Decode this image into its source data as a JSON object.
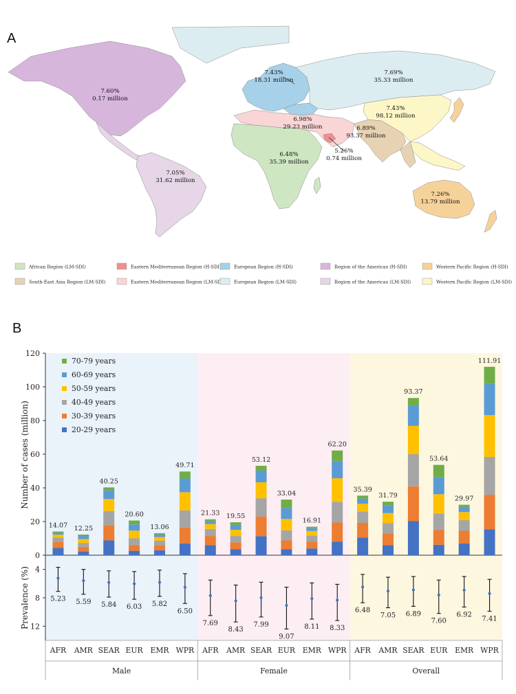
{
  "panel_a": {
    "letter": "A",
    "colors": {
      "afr_lm": "#cfe6c2",
      "emr_h": "#f08f8f",
      "eur_h": "#a6d1e8",
      "amr_h": "#d7b6dc",
      "wpr_h": "#f6d29b",
      "sear_lm": "#e7d3b4",
      "emr_lm": "#f9d5d6",
      "eur_lm": "#dcedf1",
      "amr_lm": "#e6d6e7",
      "wpr_lm": "#fdf6c6"
    },
    "labels": [
      {
        "id": "amr_h",
        "pct": "7.60%",
        "mil": "0.17 million"
      },
      {
        "id": "amr_lm",
        "pct": "7.05%",
        "mil": "31.62 million"
      },
      {
        "id": "afr",
        "pct": "6.48%",
        "mil": "35.39 million"
      },
      {
        "id": "emr_lm",
        "pct": "6.98%",
        "mil": "29.23 million"
      },
      {
        "id": "emr_h",
        "pct": "5.26%",
        "mil": "0.74 million"
      },
      {
        "id": "eur_h",
        "pct": "7.43%",
        "mil": "18.31 million"
      },
      {
        "id": "eur_lm",
        "pct": "7.69%",
        "mil": "35.33 million"
      },
      {
        "id": "wpr_lm",
        "pct": "7.43%",
        "mil": "98.12 million"
      },
      {
        "id": "sear",
        "pct": "6.89%",
        "mil": "93.37 million"
      },
      {
        "id": "wpr_h",
        "pct": "7.26%",
        "mil": "13.79 million"
      }
    ],
    "legend": [
      {
        "label": "African Region (LM-SDI)",
        "color": "#cfe6c2"
      },
      {
        "label": "Eastern Mediterranean Region (H-SDI)",
        "color": "#f08f8f"
      },
      {
        "label": "European Region (H-SDI)",
        "color": "#a6d1e8"
      },
      {
        "label": "Region of the Americas (H-SDI)",
        "color": "#d7b6dc"
      },
      {
        "label": "Western Pacific Region (H-SDI)",
        "color": "#f6d29b"
      },
      {
        "label": "South-East Asia Region (LM-SDI)",
        "color": "#e7d3b4"
      },
      {
        "label": "Eastern Mediterranean Region (LM-SDI)",
        "color": "#f9d5d6"
      },
      {
        "label": "European Region (LM-SDI)",
        "color": "#dcedf1"
      },
      {
        "label": "Region of the Americas (LM-SDI)",
        "color": "#e6d6e7"
      },
      {
        "label": "Western Pacific Region (LM-SDI)",
        "color": "#fdf6c6"
      }
    ]
  },
  "panel_b": {
    "letter": "B",
    "group_colors": [
      "#eaf2fa",
      "#fdeef3",
      "#fdf7e0"
    ],
    "chart_data": {
      "type": "bar",
      "stacked": true,
      "ylabel": "Number of cases (million)",
      "ylim": [
        0,
        120
      ],
      "yticks": [
        0,
        20,
        40,
        60,
        80,
        100,
        120
      ],
      "groups": [
        "Male",
        "Female",
        "Overall"
      ],
      "categories": [
        "AFR",
        "AMR",
        "SEAR",
        "EUR",
        "EMR",
        "WPR"
      ],
      "series": [
        {
          "name": "20-29 years",
          "color": "#4472c4",
          "values": [
            [
              4.3,
              2.2,
              8.8,
              2.6,
              2.9,
              7.0
            ],
            [
              6.0,
              3.6,
              11.3,
              3.6,
              4.0,
              8.1
            ],
            [
              10.4,
              6.0,
              20.2,
              6.2,
              7.0,
              15.3
            ]
          ]
        },
        {
          "name": "30-39 years",
          "color": "#ed7d31",
          "values": [
            [
              3.5,
              2.8,
              9.0,
              3.4,
              3.1,
              9.3
            ],
            [
              5.4,
              4.0,
              11.7,
              5.2,
              4.1,
              11.3
            ],
            [
              8.8,
              6.9,
              20.7,
              8.7,
              7.5,
              20.6
            ]
          ]
        },
        {
          "name": "40-49 years",
          "color": "#a5a5a5",
          "values": [
            [
              2.6,
              2.3,
              8.4,
              4.0,
              2.7,
              10.3
            ],
            [
              4.2,
              3.8,
              10.8,
              5.9,
              3.6,
              12.3
            ],
            [
              6.8,
              6.1,
              19.1,
              9.9,
              6.3,
              22.5
            ]
          ]
        },
        {
          "name": "50-59 years",
          "color": "#ffc000",
          "values": [
            [
              1.8,
              2.3,
              7.2,
              4.6,
              2.1,
              10.8
            ],
            [
              2.9,
              3.7,
              9.5,
              6.8,
              2.7,
              14.0
            ],
            [
              4.6,
              6.0,
              16.8,
              11.4,
              4.8,
              24.8
            ]
          ]
        },
        {
          "name": "60-69 years",
          "color": "#5b9bd5",
          "values": [
            [
              1.1,
              1.8,
              5.1,
              3.7,
              1.5,
              8.1
            ],
            [
              1.8,
              3.0,
              6.9,
              6.5,
              1.6,
              10.3
            ],
            [
              3.0,
              4.7,
              12.0,
              10.2,
              3.2,
              18.5
            ]
          ]
        },
        {
          "name": "70-79 years",
          "color": "#70ad47",
          "values": [
            [
              0.77,
              0.85,
              1.75,
              2.3,
              0.76,
              4.21
            ],
            [
              1.03,
              1.45,
              2.92,
              5.04,
              0.91,
              6.2
            ],
            [
              1.79,
              2.09,
              4.57,
              7.24,
              1.17,
              10.21
            ]
          ]
        }
      ],
      "totals": [
        [
          "14.07",
          "12.25",
          "40.25",
          "20.60",
          "13.06",
          "49.71"
        ],
        [
          "21.33",
          "19.55",
          "53.12",
          "33.04",
          "16.91",
          "62.20"
        ],
        [
          "35.39",
          "31.79",
          "93.37",
          "53.64",
          "29.97",
          "111.91"
        ]
      ]
    },
    "prevalence_chart": {
      "type": "scatter",
      "ylabel": "Prevalence (%)",
      "ylim": [
        2,
        14
      ],
      "yticks": [
        4,
        8,
        12
      ],
      "inverted": true,
      "values": [
        [
          5.23,
          5.59,
          5.84,
          6.03,
          5.82,
          6.5
        ],
        [
          7.69,
          8.43,
          7.99,
          9.07,
          8.11,
          8.33
        ],
        [
          6.48,
          7.05,
          6.89,
          7.6,
          6.92,
          7.41
        ]
      ],
      "labels": [
        [
          "5.23",
          "5.59",
          "5.84",
          "6.03",
          "5.82",
          "6.50"
        ],
        [
          "7.69",
          "8.43",
          "7.99",
          "9.07",
          "8.11",
          "8.33"
        ],
        [
          "6.48",
          "7.05",
          "6.89",
          "7.60",
          "6.92",
          "7.41"
        ]
      ],
      "ci_low": [
        [
          3.7,
          4.0,
          4.2,
          4.3,
          4.1,
          4.6
        ],
        [
          5.5,
          6.2,
          5.8,
          6.5,
          5.9,
          6.1
        ],
        [
          4.7,
          5.1,
          5.0,
          5.5,
          5.0,
          5.4
        ]
      ],
      "ci_high": [
        [
          7.1,
          7.5,
          7.9,
          8.2,
          7.8,
          8.8
        ],
        [
          10.5,
          11.4,
          10.7,
          12.4,
          11.0,
          11.2
        ],
        [
          8.7,
          9.4,
          9.2,
          10.2,
          9.3,
          9.9
        ]
      ]
    }
  }
}
